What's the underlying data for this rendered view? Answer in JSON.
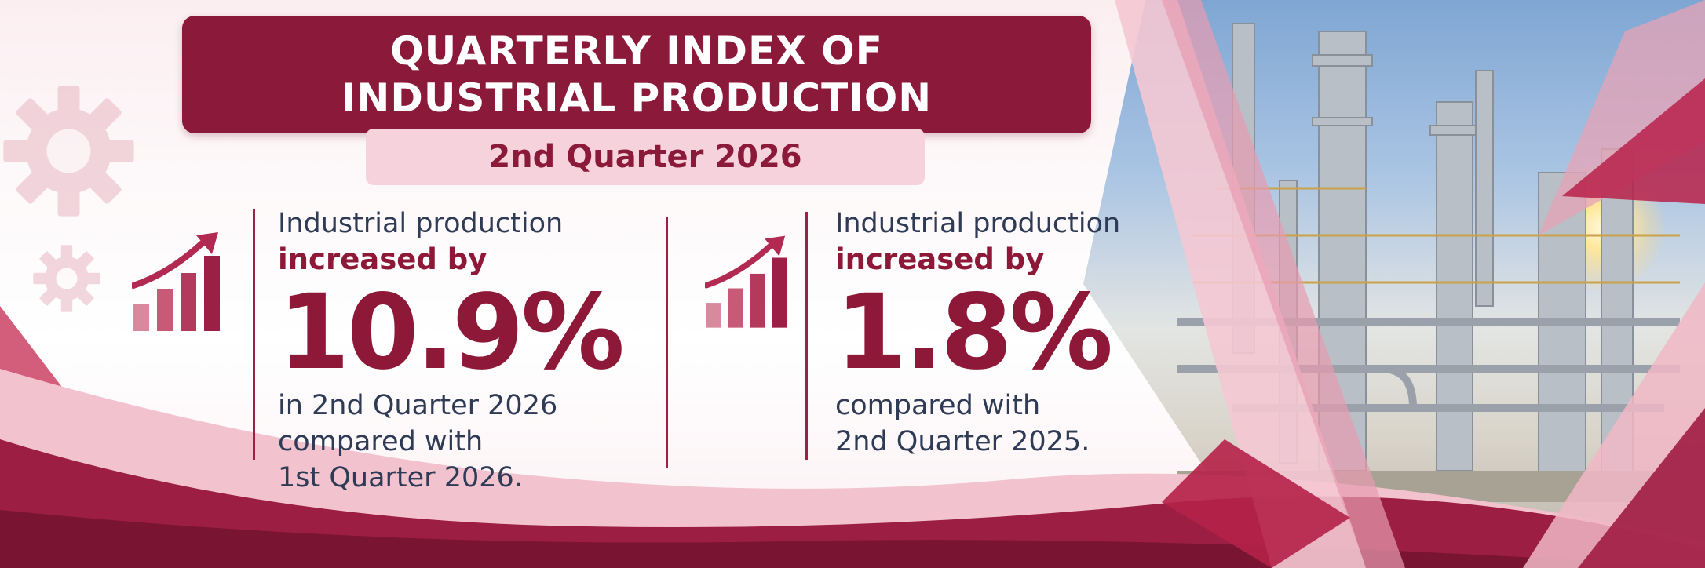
{
  "header": {
    "title_line1": "QUARTERLY INDEX OF",
    "title_line2": "INDUSTRIAL PRODUCTION",
    "subtitle": "2nd Quarter 2026"
  },
  "stats": [
    {
      "intro": "Industrial production",
      "emphasis": "increased by",
      "value": "10.9%",
      "detail_lines": [
        "in 2nd Quarter 2026",
        "compared with",
        "1st Quarter 2026."
      ]
    },
    {
      "intro": "Industrial production",
      "emphasis": "increased by",
      "value": "1.8%",
      "detail_lines": [
        "compared with",
        "2nd Quarter 2025."
      ]
    }
  ],
  "colors": {
    "primary": "#8b1a3a",
    "accent_light": "#f6d3dc",
    "text_dark": "#2f3b55"
  },
  "icons": [
    "gear-icon",
    "bar-chart-growth-icon"
  ]
}
